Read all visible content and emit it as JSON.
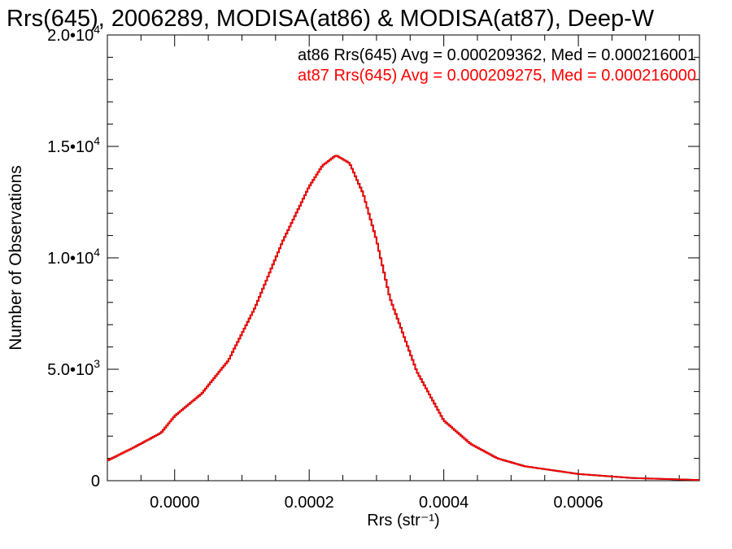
{
  "chart_data": {
    "type": "line",
    "title": "Rrs(645), 2006289, MODISA(at86) & MODISA(at87), Deep-W",
    "xlabel": "Rrs (str⁻¹)",
    "ylabel": "Number of Observations",
    "xlim": [
      -0.0001,
      0.00078
    ],
    "ylim": [
      0,
      20000
    ],
    "x_ticks": [
      {
        "value": 0.0,
        "label": "0.0000"
      },
      {
        "value": 0.0002,
        "label": "0.0002"
      },
      {
        "value": 0.0004,
        "label": "0.0004"
      },
      {
        "value": 0.0006,
        "label": "0.0006"
      }
    ],
    "y_ticks": [
      {
        "value": 0,
        "mant": "0",
        "exp": ""
      },
      {
        "value": 5000,
        "mant": "5.0•10",
        "exp": "3"
      },
      {
        "value": 10000,
        "mant": "1.0•10",
        "exp": "4"
      },
      {
        "value": 15000,
        "mant": "1.5•10",
        "exp": "4"
      },
      {
        "value": 20000,
        "mant": "2.0•10",
        "exp": "4"
      }
    ],
    "annotations": [
      {
        "text": "at86 Rrs(645) Avg = 0.000209362, Med = 0.000216001",
        "color": "#000000"
      },
      {
        "text": "at87 Rrs(645) Avg = 0.000209275, Med = 0.000216000",
        "color": "#ff0000"
      }
    ],
    "series": [
      {
        "color": "#000000",
        "x": [
          -0.0001,
          -6e-05,
          -2e-05,
          0.0,
          4e-05,
          8e-05,
          0.00012,
          0.00016,
          0.0002,
          0.00022,
          0.00024,
          0.00026,
          0.00028,
          0.0003,
          0.00032,
          0.00036,
          0.0004,
          0.00044,
          0.00048,
          0.00052,
          0.0006,
          0.00068,
          0.00078
        ],
        "y": [
          900,
          1500,
          2150,
          2900,
          3900,
          5400,
          7800,
          10700,
          13200,
          14150,
          14600,
          14250,
          12900,
          10800,
          8200,
          4900,
          2700,
          1650,
          1000,
          650,
          300,
          120,
          30
        ]
      },
      {
        "color": "#ff0000",
        "x": [
          -0.0001,
          -6e-05,
          -2e-05,
          0.0,
          4e-05,
          8e-05,
          0.00012,
          0.00016,
          0.0002,
          0.00022,
          0.00024,
          0.00026,
          0.00028,
          0.0003,
          0.00032,
          0.00036,
          0.0004,
          0.00044,
          0.00048,
          0.00052,
          0.0006,
          0.00068,
          0.00078
        ],
        "y": [
          900,
          1500,
          2150,
          2900,
          3900,
          5400,
          7800,
          10700,
          13200,
          14150,
          14600,
          14250,
          12900,
          10800,
          8200,
          4900,
          2700,
          1650,
          1000,
          650,
          300,
          120,
          30
        ]
      }
    ]
  }
}
